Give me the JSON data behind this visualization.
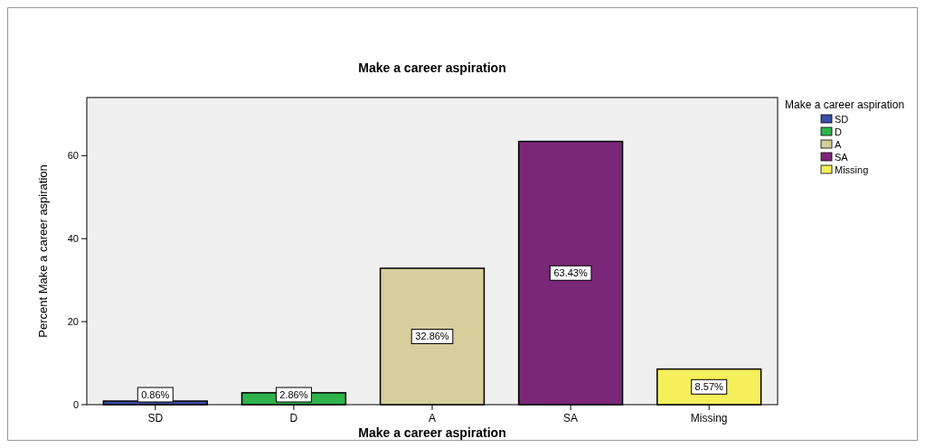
{
  "chart_data": {
    "type": "bar",
    "title": "Make a career aspiration",
    "xlabel": "Make a career aspiration",
    "ylabel": "Percent Make a career aspiration",
    "legend_title": "Make a career aspiration",
    "categories": [
      "SD",
      "D",
      "A",
      "SA",
      "Missing"
    ],
    "stacked": true,
    "series": [
      {
        "name": "SD",
        "color": "#3a4fa8",
        "values": [
          0.86,
          null,
          null,
          null,
          null
        ],
        "value_labels": [
          "0.86%",
          null,
          null,
          null,
          null
        ]
      },
      {
        "name": "D",
        "color": "#2fb34a",
        "values": [
          null,
          2.86,
          null,
          null,
          null
        ],
        "value_labels": [
          null,
          "2.86%",
          null,
          null,
          null
        ]
      },
      {
        "name": "A",
        "color": "#d6cf9c",
        "values": [
          null,
          null,
          32.86,
          null,
          null
        ],
        "value_labels": [
          null,
          null,
          "32.86%",
          null,
          null
        ]
      },
      {
        "name": "SA",
        "color": "#7b2779",
        "values": [
          null,
          null,
          null,
          63.43,
          null
        ],
        "value_labels": [
          null,
          null,
          null,
          "63.43%",
          null
        ]
      },
      {
        "name": "Missing",
        "color": "#f5ef5b",
        "values": [
          null,
          null,
          null,
          null,
          8.57
        ],
        "value_labels": [
          null,
          null,
          null,
          null,
          "8.57%"
        ]
      }
    ],
    "ylim": [
      0,
      74
    ],
    "yticks": [
      0,
      20,
      40,
      60
    ],
    "grid": false,
    "legend": "top right"
  }
}
